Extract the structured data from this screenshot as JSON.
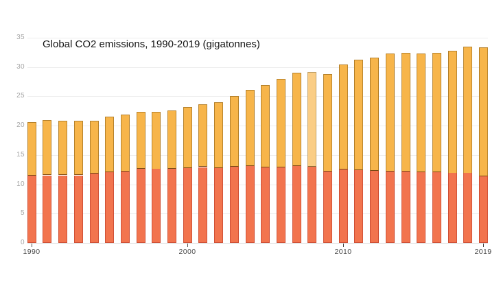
{
  "chart_data": {
    "type": "bar",
    "stacked": true,
    "title": "Global CO2 emissions, 1990-2019 (gigatonnes)",
    "xlabel": "",
    "ylabel": "",
    "ylim": [
      0,
      35
    ],
    "grid": true,
    "legend": "none",
    "years": [
      1990,
      1991,
      1992,
      1993,
      1994,
      1995,
      1996,
      1997,
      1998,
      1999,
      2000,
      2001,
      2002,
      2003,
      2004,
      2005,
      2006,
      2007,
      2008,
      2009,
      2010,
      2011,
      2012,
      2013,
      2014,
      2015,
      2016,
      2017,
      2018,
      2019
    ],
    "series": [
      {
        "name": "bottom-red-segment",
        "color": "#f2744e",
        "stroke": "#cf5036",
        "values": [
          11.5,
          11.5,
          11.5,
          11.5,
          11.8,
          12.0,
          12.2,
          12.6,
          12.6,
          12.6,
          12.8,
          12.9,
          12.8,
          13.0,
          13.1,
          12.9,
          12.9,
          13.1,
          13.0,
          12.2,
          12.5,
          12.4,
          12.3,
          12.2,
          12.2,
          12.0,
          12.0,
          11.9,
          11.9,
          11.4
        ]
      },
      {
        "name": "top-orange-segment",
        "color": "#f7b54a",
        "stroke": "#b5812b",
        "values": [
          9.1,
          9.4,
          9.3,
          9.3,
          9.0,
          9.5,
          9.7,
          9.7,
          9.8,
          10.0,
          10.4,
          10.7,
          11.2,
          12.0,
          13.0,
          14.0,
          15.1,
          15.9,
          16.2,
          16.6,
          17.9,
          18.9,
          19.3,
          20.1,
          20.2,
          20.3,
          20.4,
          20.9,
          21.6,
          22.0
        ]
      }
    ],
    "totals": [
      20.6,
      20.9,
      20.8,
      20.8,
      20.8,
      21.5,
      21.9,
      22.3,
      22.4,
      22.6,
      23.2,
      23.6,
      24.0,
      25.0,
      26.1,
      26.9,
      28.0,
      29.0,
      29.2,
      28.8,
      30.4,
      31.3,
      31.6,
      32.3,
      32.4,
      32.3,
      32.4,
      32.8,
      33.5,
      33.4
    ],
    "highlight": {
      "year": 2008,
      "segment": "top-orange-segment",
      "color": "#facd85",
      "stroke": "#bfa066"
    },
    "y_ticks": [
      "0",
      "5",
      "10",
      "15",
      "20",
      "25",
      "30",
      "35"
    ],
    "x_ticks": [
      "1990",
      "2000",
      "2010",
      "2019"
    ],
    "colors": {
      "gridline": "#ededed",
      "axis_baseline": "#dcdcdc",
      "tick_mark": "#4a4a4a",
      "y_label": "#a6a6a6",
      "x_label": "#4d4d4d",
      "title": "#151515",
      "background": "#ffffff"
    }
  }
}
